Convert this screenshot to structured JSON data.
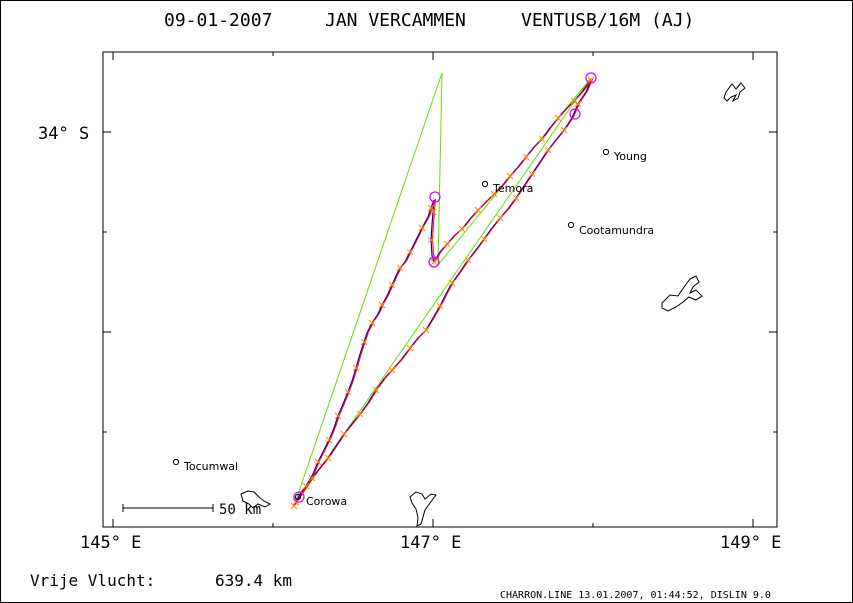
{
  "title": {
    "date": "09-01-2007",
    "pilot": "JAN VERCAMMEN",
    "glider": "VENTUSB/16M (AJ)"
  },
  "axes": {
    "lat_label": "34° S",
    "lon_labels": [
      "145° E",
      "147° E",
      "149° E"
    ]
  },
  "scale_bar": {
    "label": "50 km"
  },
  "towns": [
    {
      "name": "Young"
    },
    {
      "name": "Temora"
    },
    {
      "name": "Cootamundra"
    },
    {
      "name": "Tocumwal"
    },
    {
      "name": "Corowa"
    }
  ],
  "footer": {
    "distance_label": "Vrije Vlucht:",
    "distance_value": "639.4 km",
    "software": "CHARRON.LINE 13.01.2007, 01:44:52, DISLIN 9.0"
  },
  "colors": {
    "track_blue": "#0000cc",
    "track_red": "#ff0000",
    "task_green": "#66dd00",
    "fix_orange": "#ff8800",
    "turnpoint_magenta": "#ee00ee"
  }
}
